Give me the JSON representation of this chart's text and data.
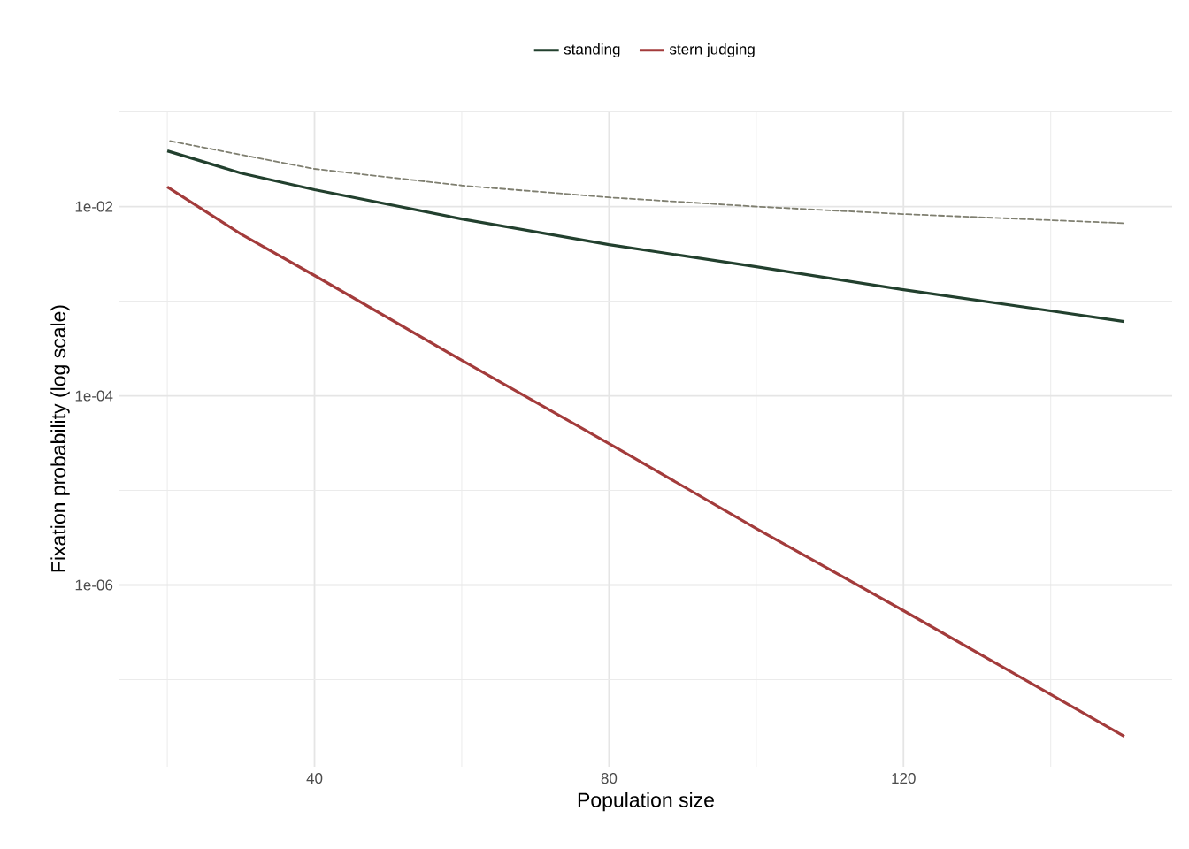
{
  "chart_data": {
    "type": "line",
    "xlabel": "Population size",
    "ylabel": "Fixation probability (log scale)",
    "log": "y",
    "grid": true,
    "legend": "top",
    "marker": "none",
    "xlim": [
      13.5,
      156.5
    ],
    "ylim": [
      1.2e-08,
      0.1035
    ],
    "xticks": [
      {
        "value": 20,
        "label": null
      },
      40,
      {
        "value": 60,
        "label": null
      },
      80,
      {
        "value": 100,
        "label": null
      },
      120,
      {
        "value": 140,
        "label": null
      }
    ],
    "yticks": [
      {
        "value": 1e-07,
        "label": null
      },
      {
        "value": 1e-06,
        "label": "1e-06"
      },
      {
        "value": 1e-05,
        "label": null
      },
      {
        "value": 0.0001,
        "label": "1e-04"
      },
      {
        "value": 0.001,
        "label": null
      },
      {
        "value": 0.01,
        "label": "1e-02"
      },
      {
        "value": 0.1,
        "label": null
      }
    ],
    "series": [
      {
        "name": "standing",
        "color": "#22402e",
        "line_style": "solid",
        "x": [
          20,
          30,
          40,
          60,
          80,
          100,
          120,
          140,
          150
        ],
        "values": [
          0.0388,
          0.0226,
          0.0151,
          0.0074,
          0.00396,
          0.00231,
          0.00132,
          0.00079,
          0.00061
        ]
      },
      {
        "name": "stern judging",
        "color": "#a33b3b",
        "line_style": "solid",
        "x": [
          20,
          30,
          40,
          60,
          80,
          100,
          120,
          150
        ],
        "values": [
          0.0161,
          0.00513,
          0.00187,
          0.000237,
          3.13e-05,
          3.96e-06,
          5.36e-07,
          2.52e-08
        ]
      },
      {
        "color": "#7f7f70",
        "line_style": "dashed",
        "x": [
          20,
          40,
          60,
          80,
          100,
          120,
          150
        ],
        "values": [
          0.05,
          0.025,
          0.0167,
          0.0125,
          0.01,
          0.00833,
          0.00667
        ]
      }
    ]
  }
}
